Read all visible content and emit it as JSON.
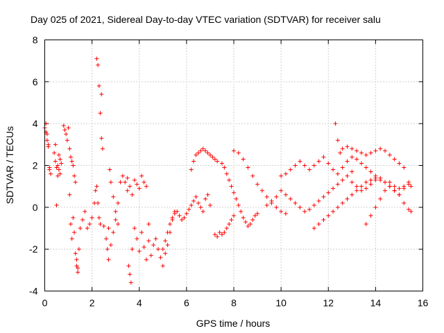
{
  "chart_data": {
    "type": "scatter",
    "title": "Day 025 of 2021, Sidereal Day-to-day VTEC variation (SDTVAR) for receiver salu",
    "xlabel": "GPS time / hours",
    "ylabel": "SDTVAR / TECUs",
    "xlim": [
      0,
      16
    ],
    "ylim": [
      -4,
      8
    ],
    "xticks": [
      "0",
      "2",
      "4",
      "6",
      "8",
      "10",
      "12",
      "14",
      "16"
    ],
    "yticks": [
      "-4",
      "-2",
      "0",
      "2",
      "4",
      "6",
      "8"
    ],
    "grid": true,
    "marker": "+",
    "color": "#ff0000",
    "series": [
      {
        "x": [
          0.0,
          0.05,
          0.1,
          0.15,
          0.2,
          0.05,
          0.1,
          0.15,
          0.2,
          0.25,
          0.4,
          0.45,
          0.5,
          0.55,
          0.6,
          0.65,
          0.7,
          0.45,
          0.5,
          0.55,
          0.6,
          0.65,
          0.8,
          0.85,
          0.9,
          0.95,
          1.0,
          1.05,
          1.1,
          1.15,
          1.2,
          1.25,
          1.3,
          1.35,
          1.4,
          1.05,
          1.1,
          1.15,
          1.2,
          1.25,
          1.3,
          1.35,
          1.4,
          1.45,
          1.5,
          1.6,
          1.7,
          1.8,
          1.9,
          2.0,
          2.1,
          2.15,
          2.2,
          2.25,
          2.3,
          2.35,
          2.4,
          2.45,
          2.2,
          2.25,
          2.3,
          2.35,
          2.4,
          2.5,
          2.6,
          2.65,
          2.7,
          2.75,
          2.8,
          2.9,
          3.0,
          3.1,
          2.7,
          2.8,
          2.9,
          3.0,
          3.1,
          3.2,
          3.3,
          3.4,
          3.5,
          3.55,
          3.6,
          3.65,
          3.7,
          3.5,
          3.6,
          3.7,
          3.8,
          3.9,
          4.0,
          4.1,
          4.2,
          4.3,
          4.4,
          3.8,
          3.9,
          4.0,
          4.1,
          4.2,
          4.3,
          4.4,
          4.5,
          4.6,
          4.7,
          4.8,
          4.9,
          5.0,
          5.1,
          5.2,
          5.3,
          5.4,
          5.5,
          5.0,
          5.1,
          5.2,
          5.3,
          5.4,
          5.5,
          5.6,
          5.7,
          5.8,
          5.9,
          6.0,
          6.1,
          6.2,
          6.3,
          6.4,
          6.5,
          6.6,
          6.7,
          6.8,
          6.9,
          7.0,
          6.2,
          6.3,
          6.4,
          6.5,
          6.6,
          6.7,
          6.8,
          6.9,
          7.0,
          7.1,
          7.2,
          7.3,
          7.2,
          7.3,
          7.4,
          7.5,
          7.6,
          7.7,
          7.8,
          7.9,
          8.0,
          7.5,
          7.6,
          7.7,
          7.8,
          7.9,
          8.0,
          8.1,
          8.2,
          8.3,
          8.4,
          8.5,
          8.6,
          8.7,
          8.8,
          8.9,
          9.0,
          8.0,
          8.2,
          8.4,
          8.6,
          8.8,
          9.0,
          9.2,
          9.4,
          9.6,
          9.8,
          10.0,
          10.2,
          9.4,
          9.6,
          9.8,
          10.0,
          10.2,
          10.4,
          10.6,
          10.8,
          11.0,
          11.2,
          11.4,
          11.6,
          11.8,
          12.0,
          12.2,
          12.4,
          12.6,
          12.8,
          13.0,
          10.0,
          10.2,
          10.4,
          10.6,
          10.8,
          11.0,
          11.2,
          11.4,
          11.6,
          11.8,
          12.0,
          12.2,
          12.4,
          12.6,
          12.8,
          13.0,
          13.2,
          13.4,
          13.6,
          13.8,
          14.0,
          11.4,
          11.6,
          11.8,
          12.0,
          12.2,
          12.4,
          12.6,
          12.8,
          13.0,
          13.2,
          13.4,
          13.6,
          13.8,
          14.0,
          14.2,
          14.4,
          14.6,
          14.8,
          15.0,
          15.2,
          15.4,
          12.3,
          12.4,
          12.5,
          12.6,
          12.8,
          13.0,
          13.2,
          13.4,
          13.6,
          13.8,
          14.0,
          14.2,
          14.4,
          14.6,
          14.8,
          15.0,
          15.2,
          13.0,
          13.2,
          13.4,
          13.6,
          13.8,
          14.0,
          14.2,
          14.4,
          14.6,
          14.8,
          15.0,
          15.2,
          15.4,
          15.5,
          13.6,
          13.8,
          14.0,
          14.2,
          14.4,
          14.6,
          14.8,
          15.0,
          15.2,
          15.4,
          15.5
        ],
        "y": [
          3.8,
          3.6,
          3.2,
          2.9,
          1.9,
          4.0,
          3.5,
          3.0,
          1.8,
          1.6,
          2.6,
          2.2,
          1.9,
          1.5,
          1.8,
          2.3,
          2.1,
          3.0,
          0.1,
          2.0,
          2.5,
          1.6,
          3.9,
          3.7,
          3.5,
          3.2,
          3.8,
          2.8,
          2.4,
          2.2,
          -0.5,
          -1.2,
          -2.2,
          -2.8,
          -3.1,
          0.6,
          -0.8,
          -1.5,
          2.0,
          1.5,
          1.2,
          -2.5,
          -2.9,
          -2.0,
          -1.0,
          -0.6,
          -0.2,
          -1.0,
          -0.8,
          -0.5,
          0.2,
          0.8,
          7.1,
          6.8,
          5.8,
          4.5,
          3.3,
          2.8,
          1.0,
          0.2,
          -0.5,
          -0.8,
          5.4,
          -0.9,
          -1.5,
          -2.0,
          -1.0,
          1.8,
          1.2,
          0.5,
          -0.2,
          -0.8,
          -2.5,
          -1.8,
          -1.2,
          -0.6,
          0.2,
          1.2,
          1.5,
          1.2,
          0.8,
          -2.8,
          -3.2,
          -3.6,
          -2.0,
          1.4,
          1.0,
          0.6,
          1.3,
          1.1,
          0.9,
          1.5,
          1.2,
          1.0,
          -0.8,
          -1.0,
          -1.5,
          -2.1,
          -1.2,
          -1.9,
          -2.5,
          -1.6,
          -2.3,
          -1.8,
          -1.5,
          -2.0,
          -2.4,
          -2.8,
          -2.2,
          -1.8,
          -1.2,
          -0.6,
          -0.2,
          -2.0,
          -1.6,
          -1.2,
          -0.8,
          -0.5,
          -0.3,
          -0.2,
          -0.4,
          -0.6,
          -0.5,
          -0.3,
          -0.1,
          0.1,
          0.3,
          0.5,
          0.2,
          0.0,
          -0.2,
          0.4,
          0.6,
          0.1,
          1.8,
          2.2,
          2.5,
          2.6,
          2.7,
          2.8,
          2.7,
          2.6,
          2.5,
          2.4,
          2.3,
          2.2,
          -1.3,
          -1.4,
          -1.2,
          -1.3,
          -1.2,
          -1.0,
          -0.8,
          -0.6,
          -0.4,
          2.1,
          1.9,
          1.6,
          1.3,
          1.0,
          0.7,
          0.4,
          0.1,
          -0.2,
          -0.5,
          -0.7,
          -0.9,
          -0.8,
          -0.6,
          -0.4,
          -0.3,
          2.7,
          2.6,
          2.3,
          1.9,
          1.5,
          1.1,
          0.8,
          0.5,
          0.2,
          0.0,
          -0.2,
          -0.3,
          0.1,
          0.3,
          0.5,
          0.8,
          0.6,
          0.4,
          0.2,
          0.0,
          -0.2,
          -0.1,
          0.1,
          0.3,
          0.5,
          0.7,
          0.9,
          1.1,
          1.3,
          1.5,
          1.7,
          1.5,
          1.6,
          1.8,
          2.0,
          2.2,
          2.0,
          1.8,
          2.0,
          2.2,
          2.4,
          2.1,
          1.8,
          1.6,
          1.9,
          2.2,
          2.4,
          2.3,
          2.1,
          1.9,
          1.7,
          1.5,
          -1.0,
          -0.8,
          -0.6,
          -0.4,
          -0.2,
          0.0,
          0.2,
          0.4,
          0.6,
          0.8,
          1.0,
          1.2,
          1.3,
          1.4,
          1.3,
          1.2,
          1.0,
          0.8,
          0.9,
          1.0,
          1.1,
          4.0,
          3.2,
          2.6,
          2.8,
          2.9,
          2.8,
          2.7,
          2.6,
          2.5,
          2.6,
          2.7,
          2.8,
          2.7,
          2.5,
          2.3,
          2.1,
          1.9,
          1.2,
          1.0,
          0.8,
          0.9,
          1.1,
          1.3,
          1.4,
          1.2,
          1.0,
          0.8,
          0.6,
          0.9,
          1.2,
          1.0,
          -0.8,
          -0.4,
          0.0,
          0.4,
          0.8,
          1.2,
          1.0,
          0.6,
          0.2,
          -0.1,
          -0.2
        ]
      }
    ]
  }
}
